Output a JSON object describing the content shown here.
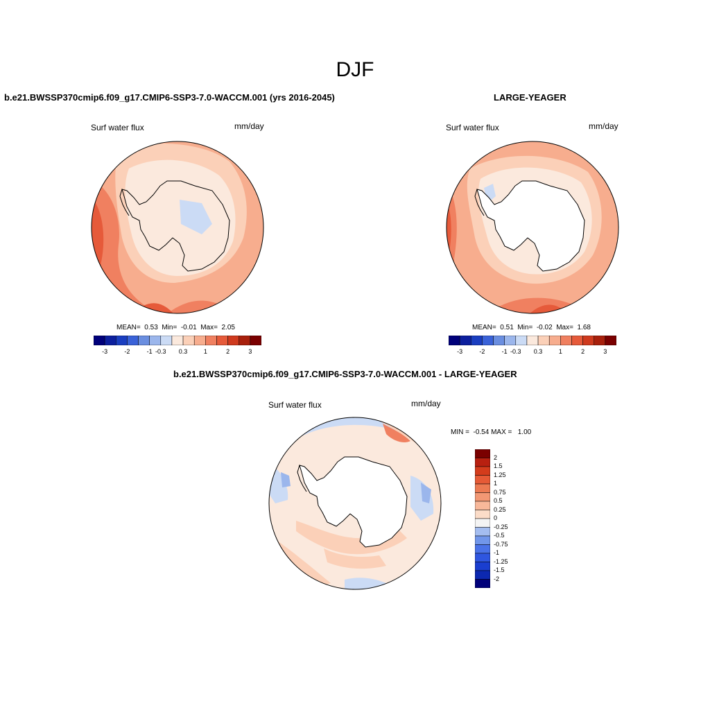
{
  "season": "DJF",
  "panels": [
    {
      "title": "b.e21.BWSSP370cmip6.f09_g17.CMIP6-SSP3-7.0-WACCM.001 (yrs 2016-2045)",
      "variable": "Surf water flux",
      "units": "mm/day",
      "stats": {
        "mean_label": "MEAN=",
        "mean": "0.53",
        "min_label": "Min=",
        "min": "-0.01",
        "max_label": "Max=",
        "max": "2.05"
      }
    },
    {
      "title": "LARGE-YEAGER",
      "variable": "Surf water flux",
      "units": "mm/day",
      "stats": {
        "mean_label": "MEAN=",
        "mean": "0.51",
        "min_label": "Min=",
        "min": "-0.02",
        "max_label": "Max=",
        "max": "1.68"
      }
    },
    {
      "title": "b.e21.BWSSP370cmip6.f09_g17.CMIP6-SSP3-7.0-WACCM.001 - LARGE-YEAGER",
      "variable": "Surf water flux",
      "units": "mm/day",
      "stats": {
        "min_label": "MIN =",
        "min": "-0.54",
        "max_label": "MAX =",
        "max": "1.00"
      }
    }
  ],
  "colorbar_main": {
    "colors": [
      "#00007a",
      "#0c1f9e",
      "#1a3ec0",
      "#3a62d8",
      "#6a8ee0",
      "#9bb6ec",
      "#cbdbf5",
      "#fbe9dd",
      "#fbd0b8",
      "#f7ad8e",
      "#f08060",
      "#e65a3a",
      "#cf3a1e",
      "#a8200c",
      "#7a0000"
    ],
    "labels": [
      "-3",
      "-2",
      "-1",
      "-0.3",
      "0.3",
      "1",
      "2",
      "3"
    ]
  },
  "colorbar_diff": {
    "colors": [
      "#00007a",
      "#0c28b0",
      "#1a3ed0",
      "#2f56e0",
      "#4a72e8",
      "#7196ea",
      "#a4bdf0",
      "#f4f4f4",
      "#fbdcc8",
      "#f8b89a",
      "#f29874",
      "#ec7a52",
      "#e65a36",
      "#d43c1c",
      "#b82010",
      "#7a0000"
    ],
    "labels": [
      "-2",
      "-1.5",
      "-1.25",
      "-1",
      "-0.75",
      "-0.5",
      "-0.25",
      "0",
      "0.25",
      "0.5",
      "0.75",
      "1",
      "1.25",
      "1.5",
      "2"
    ]
  }
}
